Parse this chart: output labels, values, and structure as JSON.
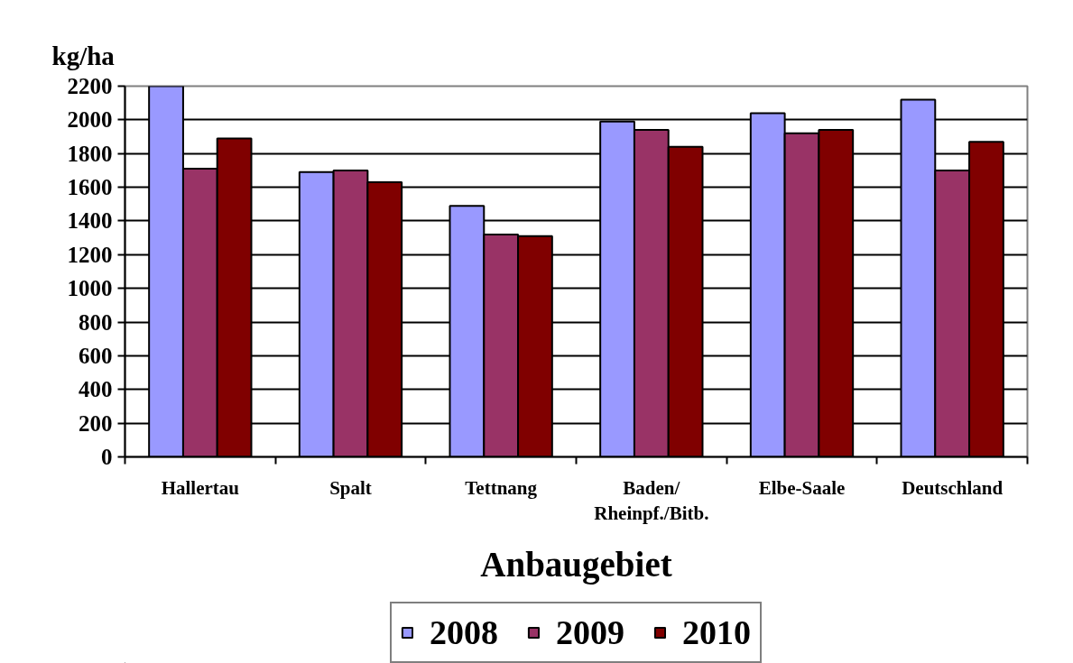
{
  "chart_data": {
    "type": "bar",
    "xlabel": "Anbaugebiet",
    "ylabel": "kg/ha",
    "categories": [
      "Hallertau",
      "Spalt",
      "Tettnang",
      "Baden/\nRheinpf./Bitb.",
      "Elbe-Saale",
      "Deutschland"
    ],
    "series": [
      {
        "name": "2008",
        "color": "#9999ff",
        "values": [
          2200,
          1690,
          1490,
          1990,
          2040,
          2120
        ]
      },
      {
        "name": "2009",
        "color": "#993366",
        "values": [
          1710,
          1700,
          1320,
          1940,
          1920,
          1700
        ]
      },
      {
        "name": "2010",
        "color": "#800000",
        "values": [
          1890,
          1630,
          1310,
          1840,
          1940,
          1870
        ]
      }
    ],
    "ylim": [
      0,
      2200
    ],
    "yticks": [
      0,
      200,
      400,
      600,
      800,
      1000,
      1200,
      1400,
      1600,
      1800,
      2000,
      2200
    ],
    "grid": "y",
    "legend": "bottom"
  }
}
